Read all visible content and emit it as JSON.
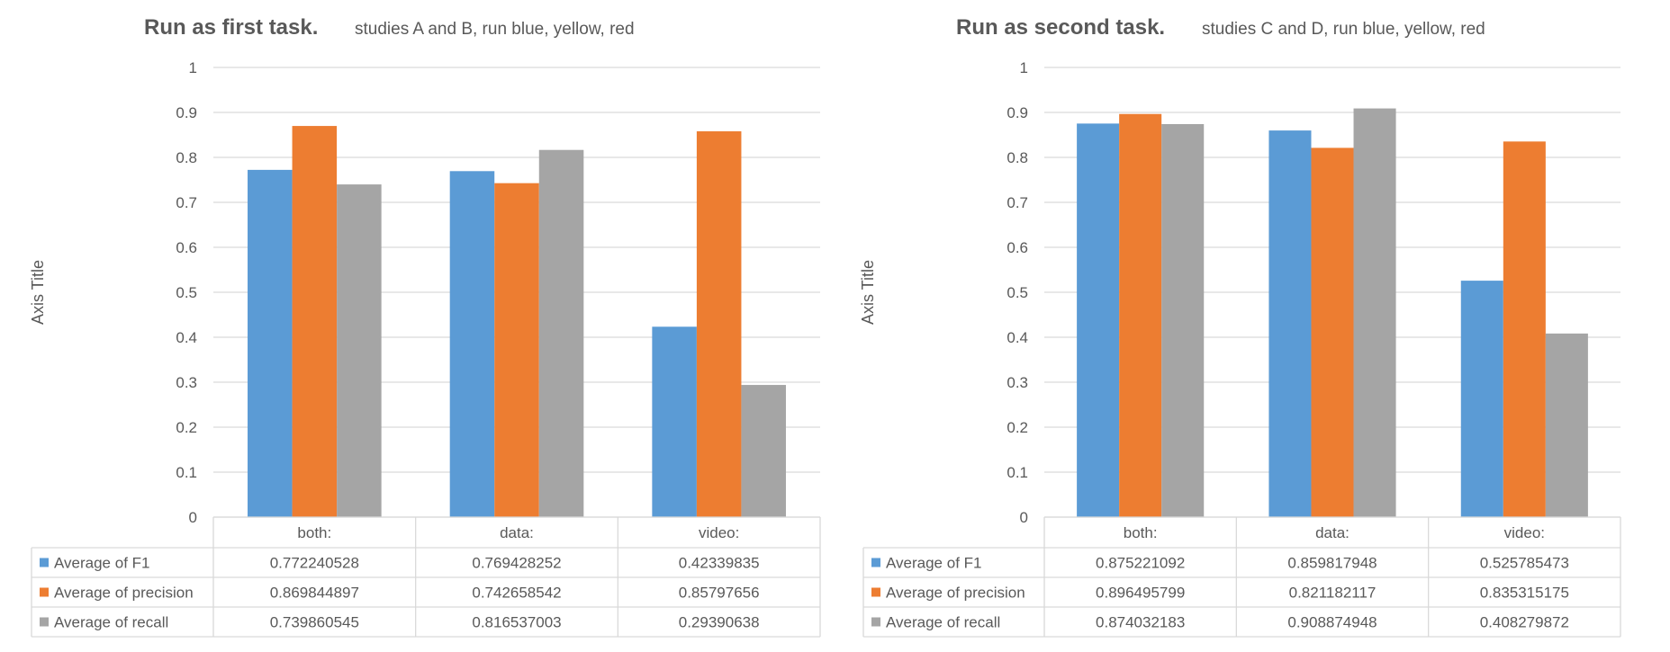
{
  "charts": [
    {
      "title_bold": "Run as first task.",
      "title_sub": "studies A and B, run blue, yellow, red",
      "ylabel": "Axis Title"
    },
    {
      "title_bold": "Run as second task.",
      "title_sub": "studies C and D, run blue, yellow, red",
      "ylabel": "Axis Title"
    }
  ],
  "colors": {
    "f1": "#5B9BD5",
    "precision": "#ED7D31",
    "recall": "#A5A5A5",
    "grid": "#D9D9D9",
    "text": "#595959"
  },
  "chart_data": [
    {
      "type": "bar",
      "title": "Run as first task.",
      "subtitle": "studies A and B, run blue, yellow, red",
      "ylabel": "Axis Title",
      "ylim": [
        0,
        1
      ],
      "yticks": [
        "0",
        "0.1",
        "0.2",
        "0.3",
        "0.4",
        "0.5",
        "0.6",
        "0.7",
        "0.8",
        "0.9",
        "1"
      ],
      "grid": true,
      "legend": "data-table",
      "categories": [
        "both:",
        "data:",
        "video:"
      ],
      "series": [
        {
          "name": "Average of F1",
          "values": [
            0.772240528,
            0.769428252,
            0.42339835
          ],
          "labels": [
            "0.772240528",
            "0.769428252",
            "0.42339835"
          ]
        },
        {
          "name": "Average of precision",
          "values": [
            0.869844897,
            0.742658542,
            0.85797656
          ],
          "labels": [
            "0.869844897",
            "0.742658542",
            "0.85797656"
          ]
        },
        {
          "name": "Average of recall",
          "values": [
            0.739860545,
            0.816537003,
            0.29390638
          ],
          "labels": [
            "0.739860545",
            "0.816537003",
            "0.29390638"
          ]
        }
      ]
    },
    {
      "type": "bar",
      "title": "Run as second task.",
      "subtitle": "studies C and D, run blue, yellow, red",
      "ylabel": "Axis Title",
      "ylim": [
        0,
        1
      ],
      "yticks": [
        "0",
        "0.1",
        "0.2",
        "0.3",
        "0.4",
        "0.5",
        "0.6",
        "0.7",
        "0.8",
        "0.9",
        "1"
      ],
      "grid": true,
      "legend": "data-table",
      "categories": [
        "both:",
        "data:",
        "video:"
      ],
      "series": [
        {
          "name": "Average of F1",
          "values": [
            0.875221092,
            0.859817948,
            0.525785473
          ],
          "labels": [
            "0.875221092",
            "0.859817948",
            "0.525785473"
          ]
        },
        {
          "name": "Average of precision",
          "values": [
            0.896495799,
            0.821182117,
            0.835315175
          ],
          "labels": [
            "0.896495799",
            "0.821182117",
            "0.835315175"
          ]
        },
        {
          "name": "Average of recall",
          "values": [
            0.874032183,
            0.908874948,
            0.408279872
          ],
          "labels": [
            "0.874032183",
            "0.908874948",
            "0.408279872"
          ]
        }
      ]
    }
  ]
}
